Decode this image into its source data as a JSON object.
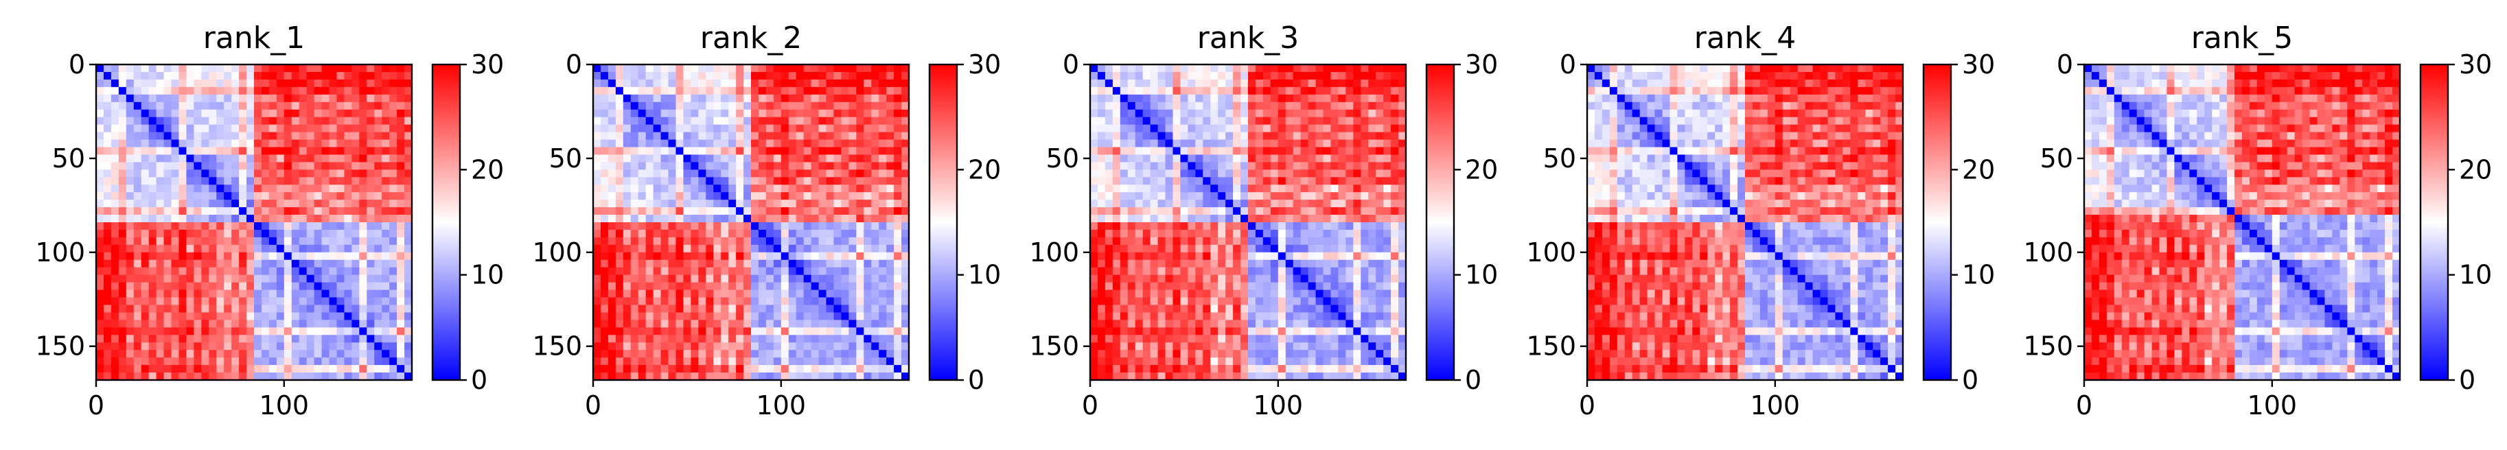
{
  "chart_data": [
    {
      "type": "heatmap",
      "title": "rank_1",
      "n": 168,
      "x_ticks": [
        0,
        100
      ],
      "y_ticks": [
        0,
        50,
        100,
        150
      ],
      "xlim": [
        0,
        168
      ],
      "ylim": [
        168,
        0
      ],
      "colorbar": {
        "range": [
          0,
          30
        ],
        "ticks": [
          0,
          10,
          20,
          30
        ],
        "colors": [
          "#0000ff",
          "#ffffff",
          "#ff0000"
        ]
      },
      "domains": {
        "A_end": 82,
        "A_sub": 45
      },
      "values_description_grid": null
    },
    {
      "type": "heatmap",
      "title": "rank_2",
      "n": 168,
      "x_ticks": [
        0,
        100
      ],
      "y_ticks": [
        0,
        50,
        100,
        150
      ],
      "xlim": [
        0,
        168
      ],
      "ylim": [
        168,
        0
      ],
      "colorbar": {
        "range": [
          0,
          30
        ],
        "ticks": [
          0,
          10,
          20,
          30
        ],
        "colors": [
          "#0000ff",
          "#ffffff",
          "#ff0000"
        ]
      },
      "domains": {
        "A_end": 82,
        "A_sub": 45
      },
      "values_description_grid": null
    },
    {
      "type": "heatmap",
      "title": "rank_3",
      "n": 168,
      "x_ticks": [
        0,
        100
      ],
      "y_ticks": [
        0,
        50,
        100,
        150
      ],
      "xlim": [
        0,
        168
      ],
      "ylim": [
        168,
        0
      ],
      "colorbar": {
        "range": [
          0,
          30
        ],
        "ticks": [
          0,
          10,
          20,
          30
        ],
        "colors": [
          "#0000ff",
          "#ffffff",
          "#ff0000"
        ]
      },
      "domains": {
        "A_end": 84,
        "A_sub": 45
      },
      "values_description_grid": null
    },
    {
      "type": "heatmap",
      "title": "rank_4",
      "n": 168,
      "x_ticks": [
        0,
        100
      ],
      "y_ticks": [
        0,
        50,
        100,
        150
      ],
      "xlim": [
        0,
        168
      ],
      "ylim": [
        168,
        0
      ],
      "colorbar": {
        "range": [
          0,
          30
        ],
        "ticks": [
          0,
          10,
          20,
          30
        ],
        "colors": [
          "#0000ff",
          "#ffffff",
          "#ff0000"
        ]
      },
      "domains": {
        "A_end": 82,
        "A_sub": 45
      },
      "values_description_grid": null
    },
    {
      "type": "heatmap",
      "title": "rank_5",
      "n": 168,
      "x_ticks": [
        0,
        100
      ],
      "y_ticks": [
        0,
        50,
        100,
        150
      ],
      "xlim": [
        0,
        168
      ],
      "ylim": [
        168,
        0
      ],
      "colorbar": {
        "range": [
          0,
          30
        ],
        "ticks": [
          0,
          10,
          20,
          30
        ],
        "colors": [
          "#0000ff",
          "#ffffff",
          "#ff0000"
        ]
      },
      "domains": {
        "A_end": 80,
        "A_sub": 45
      },
      "values_description_grid": null
    }
  ]
}
